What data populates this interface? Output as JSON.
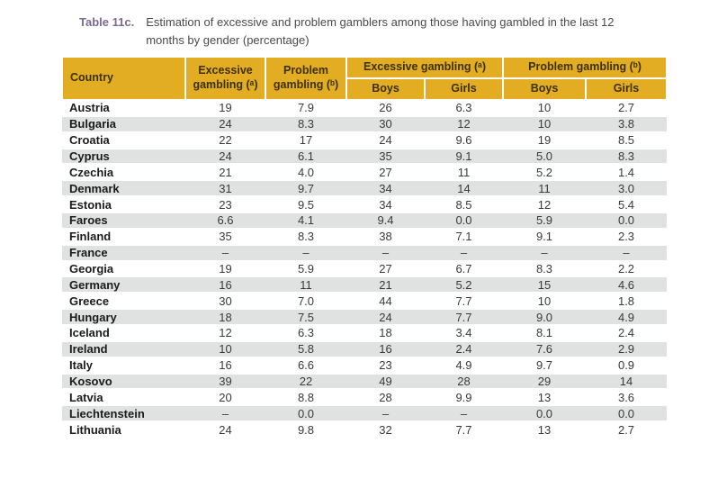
{
  "colors": {
    "header_bg": "#E2AD22",
    "header_text": "#3B2F06",
    "stripe": "#E0E1E1",
    "accent": "#7B6B92",
    "caption_text": "#4A4A4A",
    "body_text": "#3A3A3A",
    "country_text": "#1B1B1B"
  },
  "caption": {
    "label": "Table 11c.",
    "text": "Estimation of excessive and problem gamblers among those having gambled in the last 12 months by gender (percentage)"
  },
  "table": {
    "headers": {
      "country": "Country",
      "excessive_total": "Excessive gambling (ᵃ)",
      "problem_total": "Problem gambling (ᵇ)",
      "excessive_group": "Excessive gambling (ᵃ)",
      "problem_group": "Problem gambling (ᵇ)",
      "boys": "Boys",
      "girls": "Girls"
    },
    "rows": [
      {
        "country": "Austria",
        "values": [
          "19",
          "7.9",
          "26",
          "6.3",
          "10",
          "2.7"
        ]
      },
      {
        "country": "Bulgaria",
        "values": [
          "24",
          "8.3",
          "30",
          "12",
          "10",
          "3.8"
        ]
      },
      {
        "country": "Croatia",
        "values": [
          "22",
          "17",
          "24",
          "9.6",
          "19",
          "8.5"
        ]
      },
      {
        "country": "Cyprus",
        "values": [
          "24",
          "6.1",
          "35",
          "9.1",
          "5.0",
          "8.3"
        ]
      },
      {
        "country": "Czechia",
        "values": [
          "21",
          "4.0",
          "27",
          "11",
          "5.2",
          "1.4"
        ]
      },
      {
        "country": "Denmark",
        "values": [
          "31",
          "9.7",
          "34",
          "14",
          "11",
          "3.0"
        ]
      },
      {
        "country": "Estonia",
        "values": [
          "23",
          "9.5",
          "34",
          "8.5",
          "12",
          "5.4"
        ]
      },
      {
        "country": "Faroes",
        "values": [
          "6.6",
          "4.1",
          "9.4",
          "0.0",
          "5.9",
          "0.0"
        ]
      },
      {
        "country": "Finland",
        "values": [
          "35",
          "8.3",
          "38",
          "7.1",
          "9.1",
          "2.3"
        ]
      },
      {
        "country": "France",
        "values": [
          "–",
          "–",
          "–",
          "–",
          "–",
          "–"
        ]
      },
      {
        "country": "Georgia",
        "values": [
          "19",
          "5.9",
          "27",
          "6.7",
          "8.3",
          "2.2"
        ]
      },
      {
        "country": "Germany",
        "values": [
          "16",
          "11",
          "21",
          "5.2",
          "15",
          "4.6"
        ]
      },
      {
        "country": "Greece",
        "values": [
          "30",
          "7.0",
          "44",
          "7.7",
          "10",
          "1.8"
        ]
      },
      {
        "country": "Hungary",
        "values": [
          "18",
          "7.5",
          "24",
          "7.7",
          "9.0",
          "4.9"
        ]
      },
      {
        "country": "Iceland",
        "values": [
          "12",
          "6.3",
          "18",
          "3.4",
          "8.1",
          "2.4"
        ]
      },
      {
        "country": "Ireland",
        "values": [
          "10",
          "5.8",
          "16",
          "2.4",
          "7.6",
          "2.9"
        ]
      },
      {
        "country": "Italy",
        "values": [
          "16",
          "6.6",
          "23",
          "4.9",
          "9.7",
          "0.9"
        ]
      },
      {
        "country": "Kosovo",
        "values": [
          "39",
          "22",
          "49",
          "28",
          "29",
          "14"
        ]
      },
      {
        "country": "Latvia",
        "values": [
          "20",
          "8.8",
          "28",
          "9.9",
          "13",
          "3.6"
        ]
      },
      {
        "country": "Liechtenstein",
        "values": [
          "–",
          "0.0",
          "–",
          "–",
          "0.0",
          "0.0"
        ]
      },
      {
        "country": "Lithuania",
        "values": [
          "24",
          "9.8",
          "32",
          "7.7",
          "13",
          "2.7"
        ]
      }
    ]
  }
}
